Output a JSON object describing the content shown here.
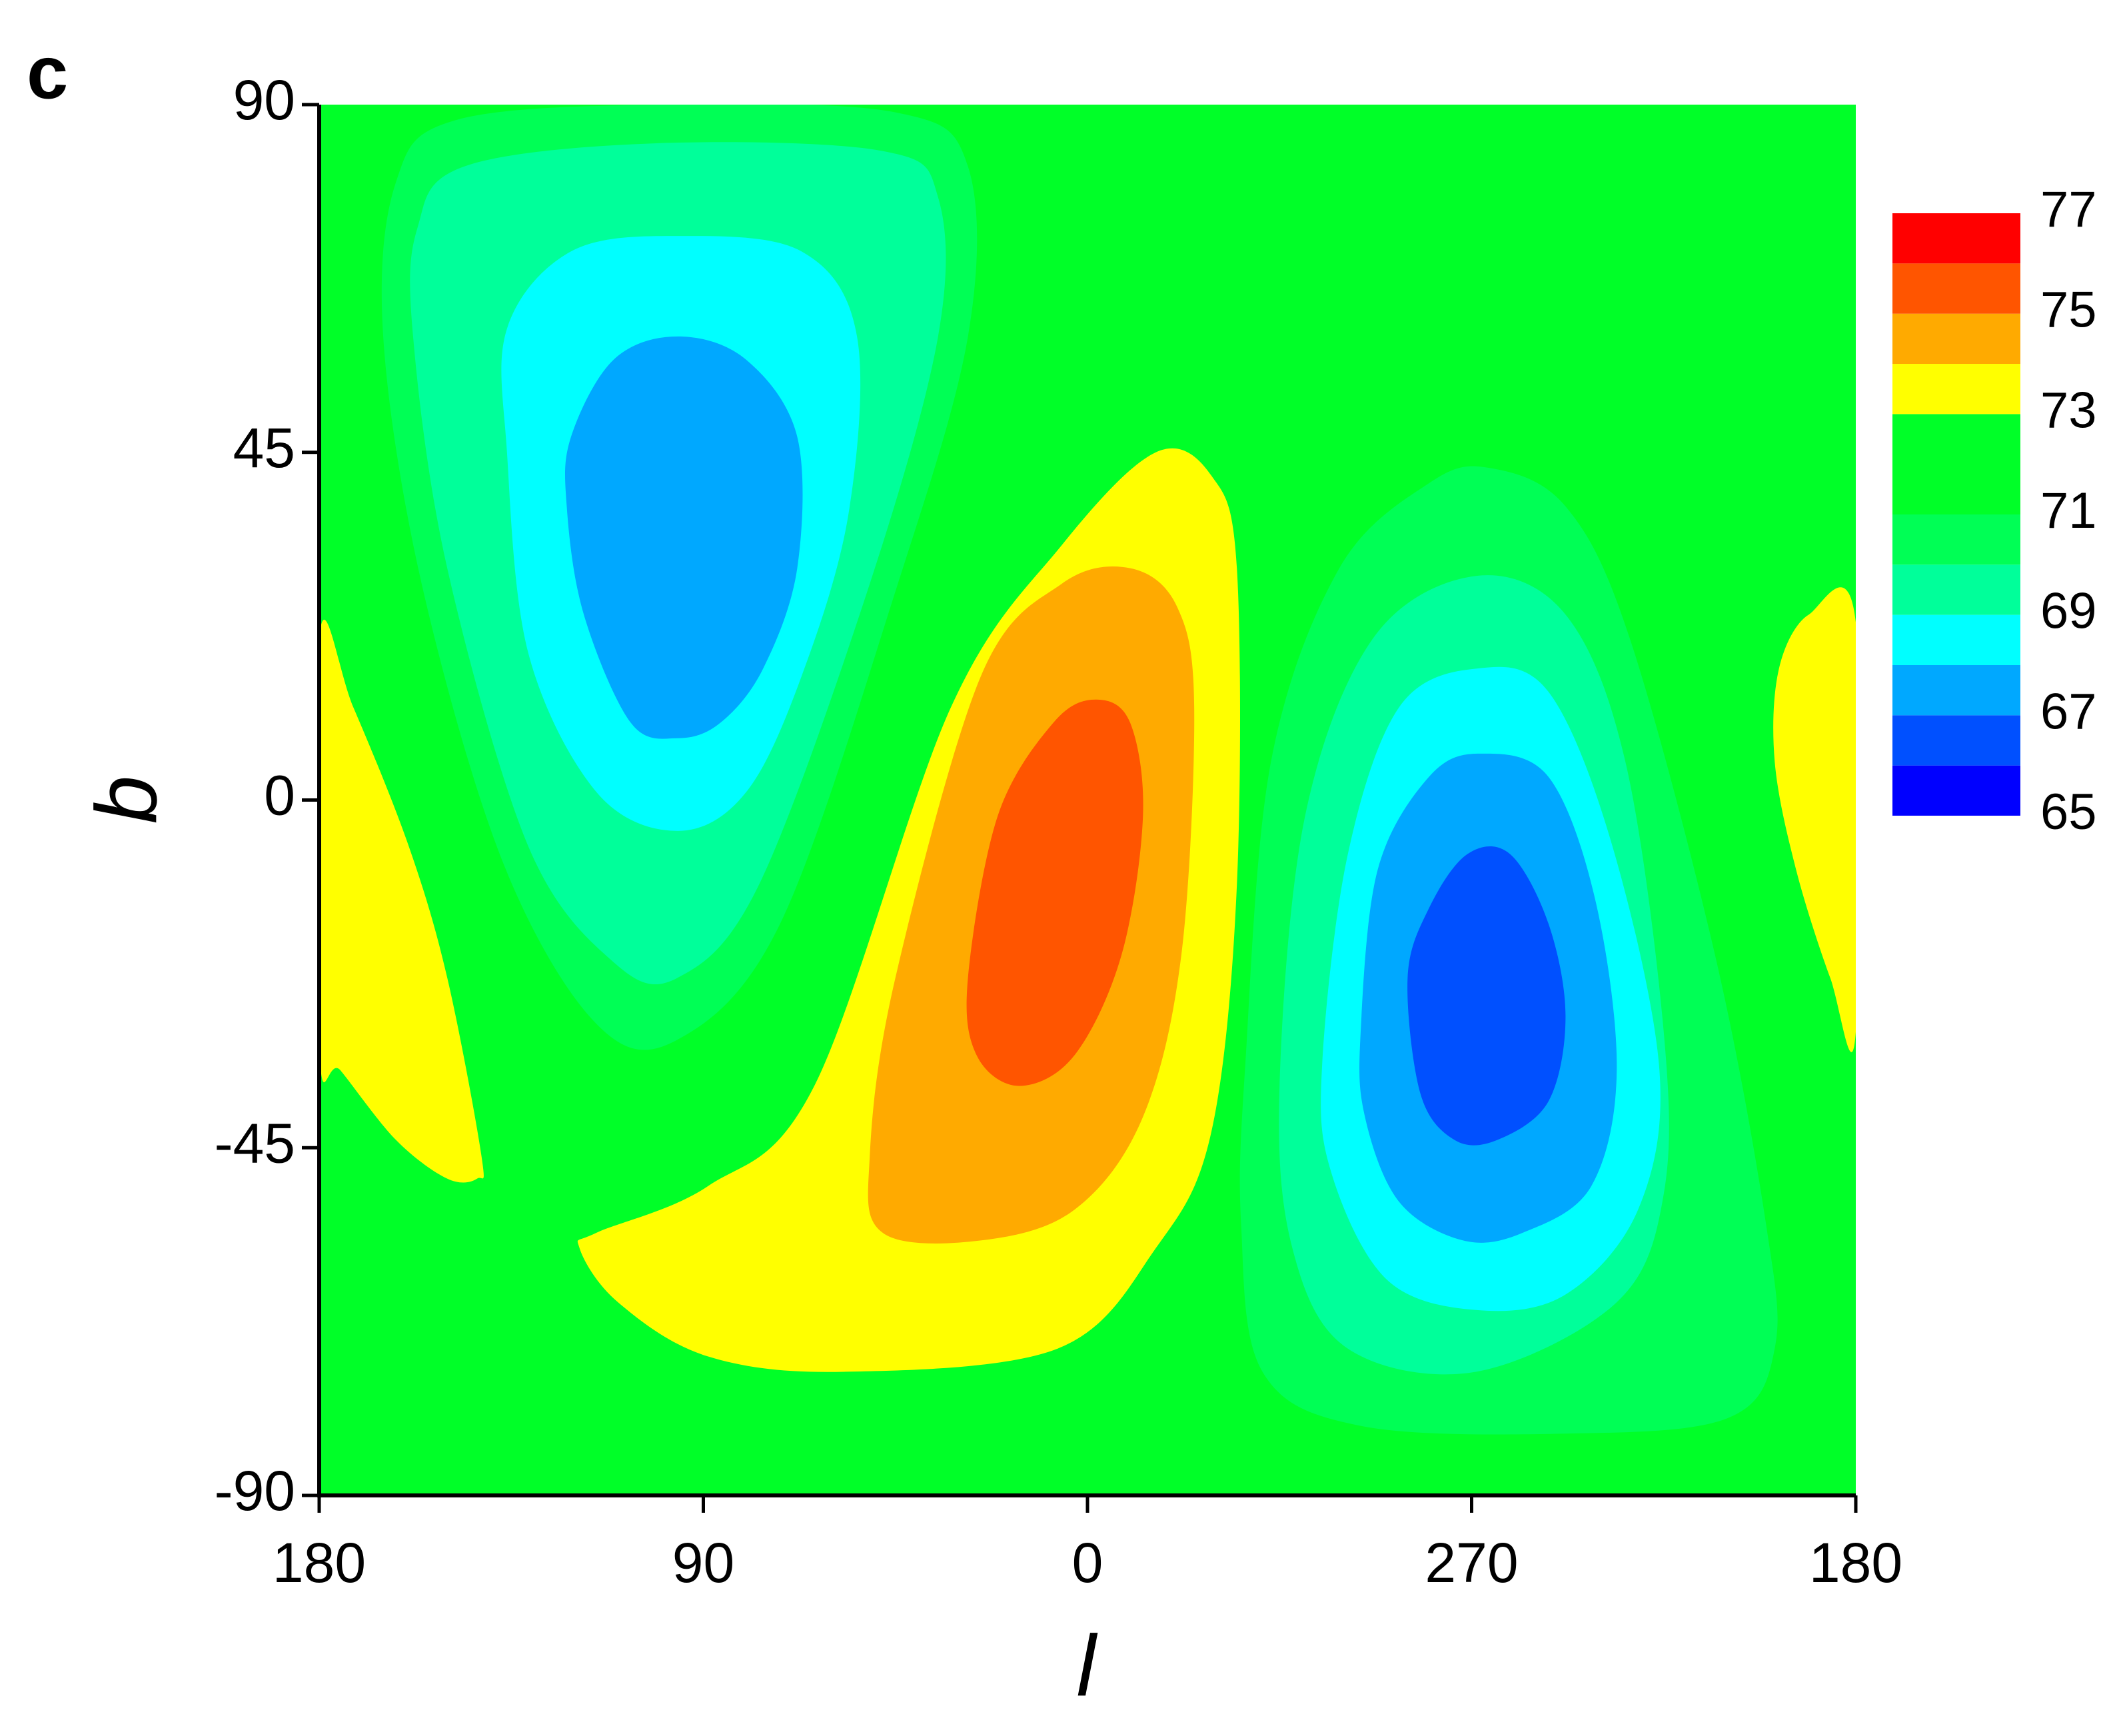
{
  "chart_data": {
    "type": "contour",
    "panel_label": "c",
    "xlabel": "l",
    "ylabel": "b",
    "xlim": [
      180,
      -180
    ],
    "ylim": [
      -90,
      90
    ],
    "xticks": [
      180,
      90,
      0,
      {
        "value": -90,
        "label": "270"
      },
      {
        "value": -180,
        "label": "180"
      }
    ],
    "yticks": [
      -90,
      -45,
      0,
      45,
      90
    ],
    "background_band": [
      71,
      73
    ],
    "colorbar": {
      "levels": [
        65,
        66,
        67,
        68,
        69,
        70,
        71,
        73,
        74,
        75,
        76,
        77
      ],
      "colors": [
        "#0000ff",
        "#0050ff",
        "#00a8ff",
        "#00ffff",
        "#00ff9a",
        "#00ff55",
        "#00ff28",
        "#ffff00",
        "#ffaa00",
        "#ff5500",
        "#ff0000"
      ],
      "ticks": [
        65,
        67,
        69,
        71,
        73,
        75,
        77
      ]
    },
    "regions": [
      {
        "band": [
          70,
          71
        ],
        "points": [
          [
            162,
            80
          ],
          [
            148,
            88
          ],
          [
            100,
            90
          ],
          [
            45,
            89
          ],
          [
            28,
            82
          ],
          [
            28,
            60
          ],
          [
            45,
            27
          ],
          [
            72,
            -16
          ],
          [
            96,
            -31
          ],
          [
            115,
            -29
          ],
          [
            137,
            -8
          ],
          [
            156,
            28
          ],
          [
            165,
            60
          ]
        ]
      },
      {
        "band": [
          69,
          70
        ],
        "points": [
          [
            157,
            74
          ],
          [
            146,
            82
          ],
          [
            101,
            85
          ],
          [
            48,
            84
          ],
          [
            35,
            78
          ],
          [
            35,
            60
          ],
          [
            51,
            28
          ],
          [
            77,
            -11
          ],
          [
            96,
            -23
          ],
          [
            111,
            -21
          ],
          [
            131,
            -6
          ],
          [
            150,
            30
          ],
          [
            158,
            60
          ]
        ]
      },
      {
        "band": [
          68,
          69
        ],
        "points": [
          [
            136,
            61
          ],
          [
            121,
            71
          ],
          [
            96,
            73
          ],
          [
            67,
            71
          ],
          [
            54,
            60
          ],
          [
            56,
            37
          ],
          [
            67,
            16
          ],
          [
            80,
            1
          ],
          [
            96,
            -4
          ],
          [
            115,
            1
          ],
          [
            131,
            19
          ],
          [
            136,
            45
          ]
        ]
      },
      {
        "band": [
          67,
          68
        ],
        "points": [
          [
            121,
            47
          ],
          [
            111,
            57
          ],
          [
            96,
            60
          ],
          [
            80,
            57
          ],
          [
            68,
            47
          ],
          [
            68,
            30
          ],
          [
            76,
            17
          ],
          [
            86,
            10
          ],
          [
            96,
            8
          ],
          [
            107,
            10
          ],
          [
            118,
            24
          ],
          [
            122,
            38
          ]
        ]
      },
      {
        "band": [
          70,
          71
        ],
        "points": [
          [
            -37,
            -34
          ],
          [
            -43,
            5
          ],
          [
            -59,
            30
          ],
          [
            -80,
            41
          ],
          [
            -94,
            43
          ],
          [
            -112,
            38
          ],
          [
            -127,
            21
          ],
          [
            -147,
            -20
          ],
          [
            -159,
            -55
          ],
          [
            -161,
            -71
          ],
          [
            -150,
            -80
          ],
          [
            -112,
            -82
          ],
          [
            -64,
            -81
          ],
          [
            -41,
            -74
          ],
          [
            -36,
            -55
          ]
        ]
      },
      {
        "band": [
          69,
          70
        ],
        "points": [
          [
            -45,
            -37
          ],
          [
            -51,
            -2
          ],
          [
            -67,
            21
          ],
          [
            -91,
            29
          ],
          [
            -112,
            24
          ],
          [
            -126,
            5
          ],
          [
            -135,
            -30
          ],
          [
            -135,
            -51
          ],
          [
            -124,
            -65
          ],
          [
            -91,
            -74
          ],
          [
            -61,
            -71
          ],
          [
            -48,
            -58
          ]
        ]
      },
      {
        "band": [
          68,
          69
        ],
        "points": [
          [
            -55,
            -34
          ],
          [
            -61,
            -7
          ],
          [
            -73,
            12
          ],
          [
            -91,
            17
          ],
          [
            -108,
            14
          ],
          [
            -123,
            -6
          ],
          [
            -134,
            -35
          ],
          [
            -129,
            -53
          ],
          [
            -112,
            -64
          ],
          [
            -91,
            -66
          ],
          [
            -70,
            -62
          ],
          [
            -57,
            -48
          ]
        ]
      },
      {
        "band": [
          67,
          68
        ],
        "points": [
          [
            -64,
            -30
          ],
          [
            -68,
            -9
          ],
          [
            -80,
            3
          ],
          [
            -92,
            6
          ],
          [
            -108,
            3
          ],
          [
            -119,
            -13
          ],
          [
            -124,
            -35
          ],
          [
            -118,
            -50
          ],
          [
            -102,
            -56
          ],
          [
            -88,
            -57
          ],
          [
            -73,
            -52
          ],
          [
            -65,
            -41
          ]
        ]
      },
      {
        "band": [
          66,
          67
        ],
        "points": [
          [
            -75,
            -23
          ],
          [
            -80,
            -14
          ],
          [
            -89,
            -7
          ],
          [
            -99,
            -7
          ],
          [
            -108,
            -16
          ],
          [
            -112,
            -28
          ],
          [
            -108,
            -39
          ],
          [
            -96,
            -44
          ],
          [
            -86,
            -44
          ],
          [
            -78,
            -38
          ]
        ]
      },
      {
        "band": [
          73,
          74
        ],
        "points": [
          [
            119,
            -58
          ],
          [
            115,
            -56
          ],
          [
            89,
            -50
          ],
          [
            64,
            -37
          ],
          [
            32,
            12
          ],
          [
            6,
            33
          ],
          [
            -16,
            45
          ],
          [
            -29,
            42
          ],
          [
            -35,
            30
          ],
          [
            -35,
            -11
          ],
          [
            -29,
            -43
          ],
          [
            -16,
            -58
          ],
          [
            7,
            -71
          ],
          [
            57,
            -74
          ],
          [
            89,
            -72
          ],
          [
            110,
            -65
          ]
        ]
      },
      {
        "band": [
          74,
          75
        ],
        "points": [
          [
            51,
            -46
          ],
          [
            45,
            -23
          ],
          [
            25,
            16
          ],
          [
            6,
            28
          ],
          [
            -10,
            30
          ],
          [
            -21,
            25
          ],
          [
            -25,
            12
          ],
          [
            -22,
            -20
          ],
          [
            -13,
            -41
          ],
          [
            3,
            -53
          ],
          [
            25,
            -57
          ],
          [
            48,
            -56
          ]
        ]
      },
      {
        "band": [
          75,
          76
        ],
        "points": [
          [
            28,
            -23
          ],
          [
            21,
            -2
          ],
          [
            8,
            10
          ],
          [
            -2,
            13
          ],
          [
            -10,
            10
          ],
          [
            -13,
            -2
          ],
          [
            -8,
            -20
          ],
          [
            3,
            -33
          ],
          [
            16,
            -37
          ],
          [
            26,
            -33
          ]
        ]
      },
      {
        "band": [
          73,
          74
        ],
        "points": [
          [
            180,
            21
          ],
          [
            172,
            12
          ],
          [
            159,
            -6
          ],
          [
            150,
            -23
          ],
          [
            142,
            -46
          ],
          [
            143,
            -49
          ],
          [
            150,
            -49
          ],
          [
            162,
            -44
          ],
          [
            175,
            -35
          ],
          [
            180,
            -32
          ]
        ]
      },
      {
        "band": [
          73,
          74
        ],
        "points": [
          [
            -180,
            23
          ],
          [
            -169,
            24
          ],
          [
            -162,
            17
          ],
          [
            -161,
            5
          ],
          [
            -166,
            -9
          ],
          [
            -174,
            -23
          ],
          [
            -180,
            -30
          ]
        ]
      }
    ]
  }
}
